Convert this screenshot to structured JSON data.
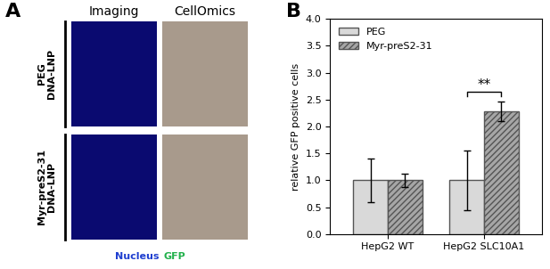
{
  "panel_a": {
    "panel_label": "A",
    "columns": [
      "Imaging",
      "CellOmics"
    ],
    "rows": [
      "PEG\nDNA-LNP",
      "Myr-preS2-31\nDNA-LNP"
    ],
    "stain_legend": [
      {
        "text": "Nucleus",
        "color": "#1f3fd0"
      },
      {
        "text": "GFP",
        "color": "#22b14c"
      }
    ]
  },
  "chart_data": {
    "type": "bar",
    "panel_label": "B",
    "y_label": "relative GFP positive cells",
    "categories": [
      "HepG2 WT",
      "HepG2 SLC10A1"
    ],
    "series": [
      {
        "name": "PEG",
        "color": "#d9d9d9",
        "values": [
          1.0,
          1.0
        ],
        "errors": [
          0.4,
          0.55
        ]
      },
      {
        "name": "Myr-preS2-31",
        "color": "#a6a6a6",
        "values": [
          1.0,
          2.28
        ],
        "errors": [
          0.12,
          0.18
        ]
      }
    ],
    "annotations": [
      {
        "text": "**",
        "category": "HepG2 SLC10A1"
      }
    ],
    "ylim": [
      0,
      4
    ],
    "yticks": [
      {
        "value": 0,
        "label": "0.0"
      },
      {
        "value": 0.5,
        "label": "0.5"
      },
      {
        "value": 1,
        "label": "1.0"
      },
      {
        "value": 1.5,
        "label": "1.5"
      },
      {
        "value": 2,
        "label": "2.0"
      },
      {
        "value": 2.5,
        "label": "2.5"
      },
      {
        "value": 3,
        "label": "3.0"
      },
      {
        "value": 3.5,
        "label": "3.5"
      },
      {
        "value": 4,
        "label": "4.0"
      }
    ],
    "legend": "upper left",
    "grid": false
  }
}
